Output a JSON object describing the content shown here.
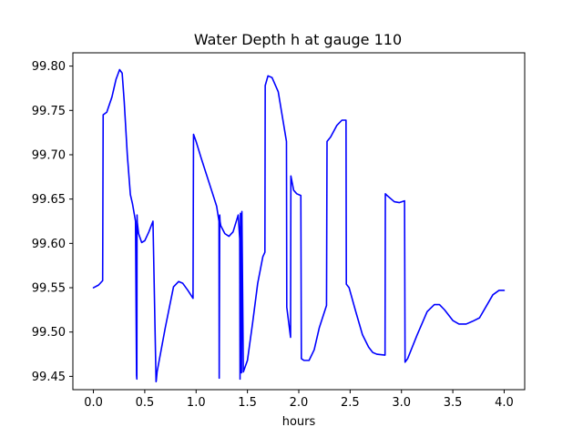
{
  "chart_data": {
    "type": "line",
    "title": "Water Depth h at gauge 110",
    "xlabel": "hours",
    "ylabel": "",
    "xlim": [
      -0.2,
      4.2
    ],
    "ylim": [
      99.435,
      99.815
    ],
    "x_ticks": [
      0.0,
      0.5,
      1.0,
      1.5,
      2.0,
      2.5,
      3.0,
      3.5,
      4.0
    ],
    "x_tick_labels": [
      "0.0",
      "0.5",
      "1.0",
      "1.5",
      "2.0",
      "2.5",
      "3.0",
      "3.5",
      "4.0"
    ],
    "y_ticks": [
      99.45,
      99.5,
      99.55,
      99.6,
      99.65,
      99.7,
      99.75,
      99.8
    ],
    "y_tick_labels": [
      "99.45",
      "99.50",
      "99.55",
      "99.60",
      "99.65",
      "99.70",
      "99.75",
      "99.80"
    ],
    "grid": false,
    "legend": "none",
    "colors": {
      "line": "#0000ff",
      "axes": "#000000",
      "background": "#ffffff"
    },
    "series": [
      {
        "x": [
          0.0,
          0.05,
          0.09,
          0.095,
          0.13,
          0.18,
          0.22,
          0.255,
          0.28,
          0.3,
          0.33,
          0.36,
          0.38,
          0.41,
          0.42,
          0.423,
          0.425,
          0.427,
          0.44,
          0.47,
          0.5,
          0.54,
          0.58,
          0.61,
          0.612,
          0.62,
          0.7,
          0.78,
          0.83,
          0.87,
          0.92,
          0.97,
          0.975,
          1.0,
          1.05,
          1.1,
          1.15,
          1.2,
          1.223,
          1.225,
          1.23,
          1.233,
          1.24,
          1.28,
          1.32,
          1.36,
          1.41,
          1.425,
          1.428,
          1.432,
          1.44,
          1.442,
          1.446,
          1.46,
          1.5,
          1.55,
          1.6,
          1.65,
          1.67,
          1.673,
          1.7,
          1.74,
          1.8,
          1.88,
          1.883,
          1.92,
          1.923,
          1.95,
          1.98,
          2.02,
          2.025,
          2.05,
          2.1,
          2.15,
          2.2,
          2.27,
          2.275,
          2.31,
          2.37,
          2.42,
          2.46,
          2.463,
          2.49,
          2.55,
          2.62,
          2.68,
          2.72,
          2.76,
          2.84,
          2.843,
          2.86,
          2.93,
          2.98,
          3.03,
          3.035,
          3.06,
          3.15,
          3.25,
          3.32,
          3.37,
          3.42,
          3.5,
          3.56,
          3.63,
          3.69,
          3.76,
          3.82,
          3.89,
          3.95,
          4.0
        ],
        "y": [
          99.55,
          99.553,
          99.558,
          99.745,
          99.748,
          99.765,
          99.785,
          99.796,
          99.792,
          99.76,
          99.7,
          99.655,
          99.645,
          99.625,
          99.451,
          99.447,
          99.632,
          99.624,
          99.611,
          99.601,
          99.603,
          99.613,
          99.625,
          99.444,
          99.445,
          99.455,
          99.505,
          99.551,
          99.557,
          99.555,
          99.547,
          99.538,
          99.723,
          99.715,
          99.696,
          99.678,
          99.66,
          99.642,
          99.625,
          99.448,
          99.632,
          99.625,
          99.62,
          99.611,
          99.608,
          99.613,
          99.632,
          99.605,
          99.447,
          99.634,
          99.632,
          99.454,
          99.636,
          99.455,
          99.468,
          99.51,
          99.555,
          99.585,
          99.59,
          99.778,
          99.789,
          99.787,
          99.771,
          99.715,
          99.528,
          99.494,
          99.676,
          99.66,
          99.656,
          99.654,
          99.47,
          99.468,
          99.468,
          99.48,
          99.505,
          99.53,
          99.715,
          99.72,
          99.733,
          99.739,
          99.739,
          99.554,
          99.55,
          99.525,
          99.497,
          99.483,
          99.477,
          99.475,
          99.474,
          99.656,
          99.654,
          99.647,
          99.646,
          99.648,
          99.466,
          99.47,
          99.496,
          99.523,
          99.531,
          99.531,
          99.525,
          99.513,
          99.509,
          99.509,
          99.512,
          99.516,
          99.528,
          99.542,
          99.547,
          99.547
        ]
      }
    ]
  }
}
